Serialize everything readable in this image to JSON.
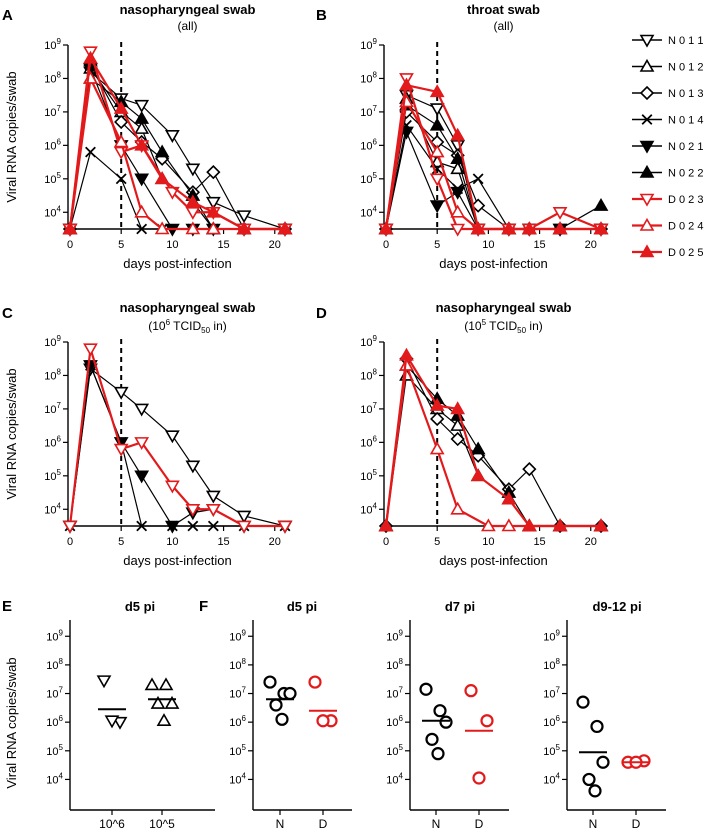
{
  "figure": {
    "ylabel": "Viral RNA copies/swab",
    "panel_letters": [
      "A",
      "B",
      "C",
      "D",
      "E",
      "F"
    ]
  },
  "colors": {
    "N": "#000000",
    "D": "#e31a1c"
  },
  "legend": {
    "entries": [
      {
        "label": "N011",
        "marker": "tri-down-open",
        "color": "#000000"
      },
      {
        "label": "N012",
        "marker": "tri-up-open",
        "color": "#000000"
      },
      {
        "label": "N013",
        "marker": "diamond-open",
        "color": "#000000"
      },
      {
        "label": "N014",
        "marker": "x",
        "color": "#000000"
      },
      {
        "label": "N021",
        "marker": "tri-down-filled",
        "color": "#000000"
      },
      {
        "label": "N022",
        "marker": "tri-up-filled",
        "color": "#000000"
      },
      {
        "label": "D023",
        "marker": "tri-down-open",
        "color": "#e31a1c"
      },
      {
        "label": "D024",
        "marker": "tri-up-open",
        "color": "#e31a1c"
      },
      {
        "label": "D025",
        "marker": "tri-up-filled",
        "color": "#e31a1c"
      }
    ]
  },
  "chart_data": [
    {
      "id": "A",
      "type": "line",
      "title": "nasopharyngeal swab",
      "subtitle": "(all)",
      "xlabel": "days post-infection",
      "ylabel": "Viral RNA copies/swab",
      "xlim": [
        0,
        21
      ],
      "ylim_log10": [
        3.5,
        9
      ],
      "yscale": "log",
      "xticks": [
        0,
        5,
        10,
        15,
        20
      ],
      "yticks_log10": [
        4,
        5,
        6,
        7,
        8,
        9
      ],
      "vline_x": 5,
      "series": [
        {
          "name": "N011",
          "x": [
            0,
            2,
            5,
            7,
            10,
            12,
            14,
            17,
            21
          ],
          "log10": [
            3.5,
            8.2,
            7.4,
            7.2,
            6.3,
            5.3,
            4.3,
            3.9,
            3.5
          ]
        },
        {
          "name": "N012",
          "x": [
            0,
            2,
            5,
            7,
            9,
            12,
            14,
            17,
            21
          ],
          "log10": [
            3.5,
            8.3,
            7.0,
            6.5,
            5.0,
            4.3,
            3.5,
            3.5,
            3.5
          ]
        },
        {
          "name": "N013",
          "x": [
            0,
            2,
            5,
            7,
            9,
            12,
            14,
            17,
            21
          ],
          "log10": [
            3.5,
            8.4,
            6.7,
            6.1,
            5.6,
            4.6,
            5.2,
            3.5,
            3.5
          ]
        },
        {
          "name": "N014",
          "x": [
            0,
            2,
            5,
            7,
            9,
            12,
            14,
            17,
            21
          ],
          "log10": [
            3.5,
            5.8,
            5.0,
            3.5,
            3.5,
            3.5,
            3.5,
            3.5,
            3.5
          ]
        },
        {
          "name": "N021",
          "x": [
            0,
            2,
            5,
            7,
            10,
            12,
            14,
            17,
            21
          ],
          "log10": [
            3.5,
            8.3,
            6.0,
            5.0,
            3.5,
            3.5,
            3.5,
            3.5,
            3.5
          ]
        },
        {
          "name": "N022",
          "x": [
            0,
            2,
            5,
            7,
            9,
            12,
            14,
            17,
            21
          ],
          "log10": [
            3.5,
            8.0,
            7.3,
            6.8,
            5.8,
            4.5,
            3.5,
            3.5,
            3.5
          ]
        },
        {
          "name": "D023",
          "x": [
            0,
            2,
            5,
            7,
            10,
            12,
            14,
            17,
            21
          ],
          "log10": [
            3.5,
            8.8,
            5.8,
            6.0,
            4.6,
            4.0,
            4.0,
            3.5,
            3.5
          ]
        },
        {
          "name": "D024",
          "x": [
            0,
            2,
            5,
            7,
            9,
            12,
            14,
            17,
            21
          ],
          "log10": [
            3.5,
            8.0,
            6.1,
            4.0,
            3.5,
            3.5,
            3.5,
            3.5,
            3.5
          ]
        },
        {
          "name": "D025",
          "x": [
            0,
            2,
            5,
            7,
            9,
            12,
            14,
            17,
            21
          ],
          "log10": [
            3.5,
            8.6,
            7.1,
            6.0,
            5.0,
            4.3,
            4.0,
            3.5,
            3.5
          ]
        }
      ]
    },
    {
      "id": "B",
      "type": "line",
      "title": "throat swab",
      "subtitle": "(all)",
      "xlabel": "days post-infection",
      "ylabel": "Viral RNA copies/swab",
      "xlim": [
        0,
        21
      ],
      "ylim_log10": [
        3.5,
        9
      ],
      "yscale": "log",
      "xticks": [
        0,
        5,
        10,
        15,
        20
      ],
      "yticks_log10": [
        4,
        5,
        6,
        7,
        8,
        9
      ],
      "vline_x": 5,
      "series": [
        {
          "name": "N011",
          "x": [
            0,
            2,
            5,
            7,
            9,
            12,
            14,
            17,
            21
          ],
          "log10": [
            3.5,
            7.5,
            7.1,
            6.0,
            3.5,
            3.5,
            3.5,
            3.5,
            3.5
          ]
        },
        {
          "name": "N012",
          "x": [
            0,
            2,
            5,
            7,
            9,
            12,
            14,
            17,
            21
          ],
          "log10": [
            3.5,
            7.4,
            5.5,
            5.3,
            3.5,
            3.5,
            3.5,
            3.5,
            3.5
          ]
        },
        {
          "name": "N013",
          "x": [
            0,
            2,
            5,
            7,
            9,
            12,
            14,
            17,
            21
          ],
          "log10": [
            3.5,
            7.0,
            6.1,
            5.7,
            4.2,
            3.5,
            3.5,
            3.5,
            3.5
          ]
        },
        {
          "name": "N014",
          "x": [
            0,
            2,
            5,
            7,
            9,
            12,
            14,
            17,
            21
          ],
          "log10": [
            3.5,
            6.6,
            5.3,
            4.7,
            5.0,
            3.5,
            3.5,
            3.5,
            3.5
          ]
        },
        {
          "name": "N021",
          "x": [
            0,
            2,
            5,
            7,
            9,
            12,
            14,
            17,
            21
          ],
          "log10": [
            3.5,
            6.4,
            4.2,
            4.6,
            3.5,
            3.5,
            3.5,
            3.5,
            3.5
          ]
        },
        {
          "name": "N022",
          "x": [
            0,
            2,
            5,
            7,
            9,
            12,
            14,
            17,
            21
          ],
          "log10": [
            3.5,
            7.2,
            6.6,
            5.6,
            3.5,
            3.5,
            3.5,
            3.5,
            4.2
          ]
        },
        {
          "name": "D023",
          "x": [
            0,
            2,
            5,
            7,
            9,
            12,
            14,
            17,
            21
          ],
          "log10": [
            3.5,
            8.0,
            5.0,
            3.5,
            3.5,
            3.5,
            3.5,
            4.0,
            3.5
          ]
        },
        {
          "name": "D024",
          "x": [
            0,
            2,
            5,
            7,
            9,
            12,
            14,
            17,
            21
          ],
          "log10": [
            3.5,
            7.3,
            5.8,
            4.0,
            3.5,
            3.5,
            3.5,
            3.5,
            3.5
          ]
        },
        {
          "name": "D025",
          "x": [
            0,
            2,
            5,
            7,
            9,
            12,
            14,
            17,
            21
          ],
          "log10": [
            3.5,
            7.8,
            7.6,
            6.3,
            3.5,
            3.5,
            3.5,
            3.5,
            3.5
          ]
        }
      ]
    },
    {
      "id": "C",
      "type": "line",
      "title": "nasopharyngeal swab",
      "subtitle_pre": "(10",
      "subtitle_sup": "6",
      "subtitle_mid": " TCID",
      "subtitle_sub": "50",
      "subtitle_post": " in)",
      "xlabel": "days post-infection",
      "ylabel": "Viral RNA copies/swab",
      "xlim": [
        0,
        21
      ],
      "ylim_log10": [
        3.5,
        9
      ],
      "yscale": "log",
      "xticks": [
        0,
        5,
        10,
        15,
        20
      ],
      "yticks_log10": [
        4,
        5,
        6,
        7,
        8,
        9
      ],
      "vline_x": 5,
      "series": [
        {
          "name": "N011",
          "x": [
            0,
            2,
            5,
            7,
            10,
            12,
            14,
            17,
            21
          ],
          "log10": [
            3.5,
            8.2,
            7.5,
            7.0,
            6.2,
            5.3,
            4.4,
            3.8,
            3.5
          ]
        },
        {
          "name": "N014",
          "x": [
            0,
            2,
            5,
            7,
            10,
            12,
            14,
            17,
            21
          ],
          "log10": [
            3.5,
            8.3,
            6.0,
            3.5,
            3.5,
            3.5,
            3.5,
            3.5,
            3.5
          ]
        },
        {
          "name": "N021",
          "x": [
            0,
            2,
            5,
            7,
            10,
            12,
            14,
            17,
            21
          ],
          "log10": [
            3.5,
            8.3,
            6.0,
            5.0,
            3.5,
            3.9,
            4.0,
            3.5,
            3.5
          ]
        },
        {
          "name": "D023",
          "x": [
            0,
            2,
            5,
            7,
            10,
            12,
            14,
            17,
            21
          ],
          "log10": [
            3.5,
            8.8,
            5.8,
            6.0,
            4.7,
            4.0,
            4.0,
            3.5,
            3.5
          ]
        }
      ]
    },
    {
      "id": "D",
      "type": "line",
      "title": "nasopharyngeal swab",
      "subtitle_pre": "(10",
      "subtitle_sup": "5",
      "subtitle_mid": " TCID",
      "subtitle_sub": "50",
      "subtitle_post": " in)",
      "xlabel": "days post-infection",
      "ylabel": "Viral RNA copies/swab",
      "xlim": [
        0,
        21
      ],
      "ylim_log10": [
        3.5,
        9
      ],
      "yscale": "log",
      "xticks": [
        0,
        5,
        10,
        15,
        20
      ],
      "yticks_log10": [
        4,
        5,
        6,
        7,
        8,
        9
      ],
      "vline_x": 5,
      "series": [
        {
          "name": "N012",
          "x": [
            0,
            2,
            5,
            7,
            9,
            12,
            14,
            17,
            21
          ],
          "log10": [
            3.5,
            8.0,
            7.0,
            6.5,
            5.0,
            4.3,
            3.5,
            3.5,
            3.5
          ]
        },
        {
          "name": "N013",
          "x": [
            0,
            2,
            5,
            7,
            9,
            12,
            14,
            17,
            21
          ],
          "log10": [
            3.5,
            8.5,
            6.7,
            6.1,
            5.6,
            4.6,
            5.2,
            3.5,
            3.5
          ]
        },
        {
          "name": "N022",
          "x": [
            0,
            2,
            5,
            7,
            9,
            12,
            14,
            17,
            21
          ],
          "log10": [
            3.5,
            8.3,
            7.3,
            6.8,
            5.8,
            4.5,
            3.5,
            3.5,
            3.5
          ]
        },
        {
          "name": "D024",
          "x": [
            0,
            2,
            5,
            7,
            10,
            12,
            14,
            17,
            21
          ],
          "log10": [
            3.5,
            8.3,
            5.8,
            4.0,
            3.5,
            3.5,
            3.5,
            3.5,
            3.5
          ]
        },
        {
          "name": "D025",
          "x": [
            0,
            2,
            5,
            7,
            9,
            12,
            14,
            17,
            21
          ],
          "log10": [
            3.5,
            8.6,
            7.1,
            7.0,
            5.0,
            4.3,
            3.5,
            3.5,
            3.5
          ]
        }
      ]
    },
    {
      "id": "E",
      "type": "scatter",
      "title": "d5 pi",
      "ylabel": "Viral RNA copies/swab",
      "yscale": "log",
      "ylim_log10": [
        3.5,
        9
      ],
      "yticks_log10": [
        4,
        5,
        6,
        7,
        8,
        9
      ],
      "categories": [
        "10^6",
        "10^5"
      ],
      "groups": [
        {
          "category": "10^6",
          "marker": "tri-down-open",
          "color": "#000000",
          "log10": [
            7.45,
            6.0,
            6.05
          ],
          "median_log10": 6.45
        },
        {
          "category": "10^5",
          "marker": "tri-up-open",
          "color": "#000000",
          "log10": [
            7.3,
            7.3,
            6.65,
            6.65,
            6.05
          ],
          "median_log10": 6.8
        }
      ]
    },
    {
      "id": "F1",
      "type": "scatter",
      "title": "d5 pi",
      "yscale": "log",
      "ylim_log10": [
        3.5,
        9
      ],
      "yticks_log10": [
        4,
        5,
        6,
        7,
        8,
        9
      ],
      "categories": [
        "N",
        "D"
      ],
      "groups": [
        {
          "category": "N",
          "marker": "circle-open",
          "color": "#000000",
          "log10": [
            7.4,
            7.0,
            7.0,
            6.6,
            6.1
          ],
          "median_log10": 6.8
        },
        {
          "category": "D",
          "marker": "circle-open",
          "color": "#e31a1c",
          "log10": [
            7.4,
            6.05,
            6.05
          ],
          "median_log10": 6.4
        }
      ]
    },
    {
      "id": "F2",
      "type": "scatter",
      "title": "d7 pi",
      "yscale": "log",
      "ylim_log10": [
        3.5,
        9
      ],
      "yticks_log10": [
        4,
        5,
        6,
        7,
        8,
        9
      ],
      "categories": [
        "N",
        "D"
      ],
      "groups": [
        {
          "category": "N",
          "marker": "circle-open",
          "color": "#000000",
          "log10": [
            7.15,
            6.4,
            6.0,
            5.4,
            4.9
          ],
          "median_log10": 6.05
        },
        {
          "category": "D",
          "marker": "circle-open",
          "color": "#e31a1c",
          "log10": [
            7.1,
            6.05,
            4.05
          ],
          "median_log10": 5.7
        }
      ]
    },
    {
      "id": "F3",
      "type": "scatter",
      "title": "d9-12 pi",
      "yscale": "log",
      "ylim_log10": [
        3.5,
        9
      ],
      "yticks_log10": [
        4,
        5,
        6,
        7,
        8,
        9
      ],
      "categories": [
        "N",
        "D"
      ],
      "groups": [
        {
          "category": "N",
          "marker": "circle-open",
          "color": "#000000",
          "log10": [
            6.7,
            5.85,
            4.6,
            4.0,
            3.6
          ],
          "median_log10": 4.95
        },
        {
          "category": "D",
          "marker": "circle-open",
          "color": "#e31a1c",
          "log10": [
            4.6,
            4.65,
            4.6
          ],
          "median_log10": 4.6
        }
      ]
    }
  ]
}
